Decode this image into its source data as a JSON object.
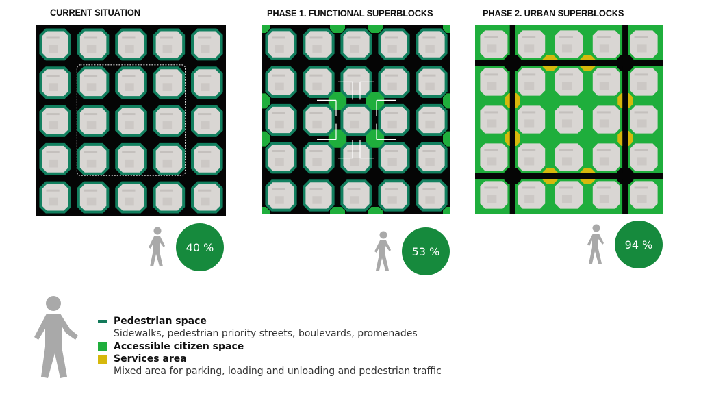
{
  "panels": [
    {
      "title": "CURRENT SITUATION",
      "percentage": "40 %",
      "phase": "current"
    },
    {
      "title": "PHASE 1. FUNCTIONAL SUPERBLOCKS",
      "percentage": "53 %",
      "phase": "phase1"
    },
    {
      "title": "PHASE 2. URBAN SUPERBLOCKS",
      "percentage": "94 %",
      "phase": "phase2"
    }
  ],
  "legend": {
    "items": [
      {
        "title": "Pedestrian space",
        "description": "Sidewalks, pedestrian priority streets, boulevards, promenades",
        "color": "#137a5a",
        "icon": "dash-swatch"
      },
      {
        "title": "Accessible citizen space",
        "description": "",
        "color": "#1fae3c",
        "icon": "square-swatch"
      },
      {
        "title": "Services area",
        "description": "Mixed area for parking, loading and unloading and pedestrian traffic",
        "color": "#d6b80c",
        "icon": "square-swatch"
      }
    ]
  },
  "colors": {
    "road": "#050505",
    "sidewalk": "#12805f",
    "citizen_space": "#1fae3c",
    "services": "#d6b80c",
    "block": "#d9d6d3",
    "stat_circle": "#168a3d",
    "walker": "#a9a9a9"
  },
  "icons": {
    "pedestrian": "walking-person-icon",
    "traffic_arrows": "turn-arrow-icon"
  }
}
